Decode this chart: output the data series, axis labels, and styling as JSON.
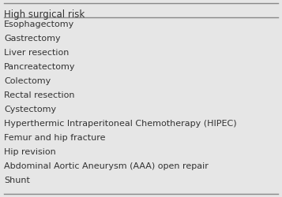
{
  "header": "High surgical risk",
  "items": [
    "Esophagectomy",
    "Gastrectomy",
    "Liver resection",
    "Pancreatectomy",
    "Colectomy",
    "Rectal resection",
    "Cystectomy",
    "Hyperthermic Intraperitoneal Chemotherapy (HIPEC)",
    "Femur and hip fracture",
    "Hip revision",
    "Abdominal Aortic Aneurysm (AAA) open repair",
    "Shunt"
  ],
  "background_color": "#e6e6e6",
  "line_color": "#888888",
  "text_color": "#333333",
  "header_fontsize": 8.5,
  "item_fontsize": 8.0,
  "font_family": "DejaVu Sans"
}
